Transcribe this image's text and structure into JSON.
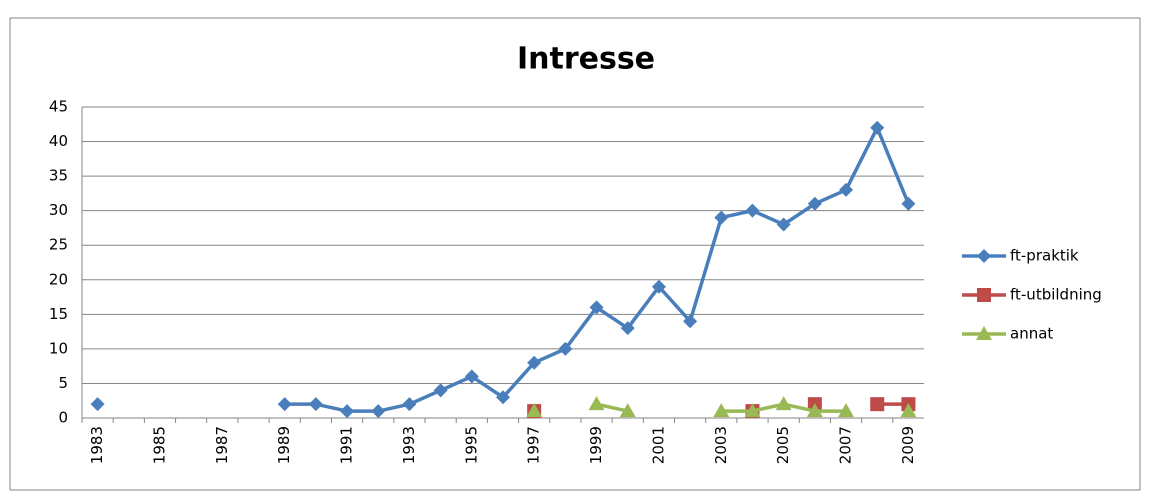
{
  "chart_data": {
    "type": "line",
    "title": "Intresse",
    "categories": [
      "1983",
      null,
      "1985",
      null,
      "1987",
      null,
      "1989",
      null,
      "1991",
      null,
      "1993",
      null,
      "1995",
      null,
      "1997",
      null,
      "1999",
      null,
      "2001",
      null,
      "2003",
      null,
      "2005",
      null,
      "2007",
      null,
      "2009"
    ],
    "series": [
      {
        "name": "ft-praktik",
        "color": "#4a7ebb",
        "marker": "diamond",
        "values": [
          2,
          null,
          null,
          null,
          null,
          null,
          2,
          2,
          1,
          1,
          2,
          4,
          6,
          3,
          8,
          10,
          16,
          13,
          19,
          14,
          29,
          30,
          28,
          31,
          33,
          42,
          31
        ]
      },
      {
        "name": "ft-utbildning",
        "color": "#be4b48",
        "marker": "square",
        "values": [
          null,
          null,
          null,
          null,
          null,
          null,
          null,
          null,
          null,
          null,
          null,
          null,
          null,
          null,
          1,
          null,
          null,
          null,
          null,
          null,
          null,
          1,
          null,
          2,
          null,
          2,
          2
        ]
      },
      {
        "name": "annat",
        "color": "#98b954",
        "marker": "triangle",
        "values": [
          null,
          null,
          null,
          null,
          null,
          null,
          null,
          null,
          null,
          null,
          null,
          null,
          null,
          null,
          1,
          null,
          2,
          1,
          null,
          null,
          1,
          1,
          2,
          1,
          1,
          null,
          1
        ]
      }
    ],
    "ylim": [
      0,
      45
    ],
    "yticks": [
      0,
      5,
      10,
      15,
      20,
      25,
      30,
      35,
      40,
      45
    ],
    "grid": true,
    "legend": "right"
  }
}
